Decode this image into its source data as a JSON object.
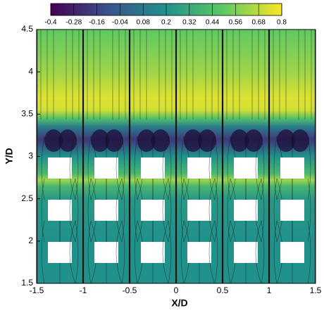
{
  "chart_data": {
    "type": "contour",
    "xlabel": "X/D",
    "ylabel": "Y/D",
    "xlim": [
      -1.5,
      1.5
    ],
    "xticks": [
      -1.5,
      -1,
      -0.5,
      0,
      0.5,
      1,
      1.5
    ],
    "ylim": [
      1.5,
      4.5
    ],
    "yticks": [
      1.5,
      2,
      2.5,
      3,
      3.5,
      4,
      4.5
    ],
    "clim": [
      -0.4,
      0.8
    ],
    "cticks": [
      -0.4,
      -0.28,
      -0.16,
      -0.04,
      0.08,
      0.2,
      0.32,
      0.44,
      0.56,
      0.68,
      0.8
    ],
    "colormap": "viridis",
    "y": [
      1.5,
      2.0,
      2.5,
      2.65,
      2.72,
      2.8,
      3.0,
      3.2,
      3.35,
      3.45,
      3.55,
      3.7,
      4.0,
      4.5
    ],
    "values": [
      0.2,
      0.2,
      0.24,
      0.4,
      0.62,
      0.4,
      0.2,
      -0.2,
      0.1,
      0.45,
      0.72,
      0.74,
      0.62,
      0.5
    ]
  }
}
